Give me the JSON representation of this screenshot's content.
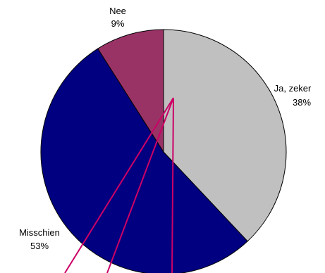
{
  "chart_data": {
    "type": "pie",
    "title": "",
    "slices": [
      {
        "label": "Ja, zeker",
        "value": 38,
        "value_label": "38%",
        "color": "#c0c0c0"
      },
      {
        "label": "Misschien",
        "value": 53,
        "value_label": "53%",
        "color": "#000080"
      },
      {
        "label": "Nee",
        "value": 9,
        "value_label": "9%",
        "color": "#993366"
      }
    ],
    "start": "12 o'clock",
    "direction": "clockwise",
    "annotation_line_color": "#cc0066"
  }
}
